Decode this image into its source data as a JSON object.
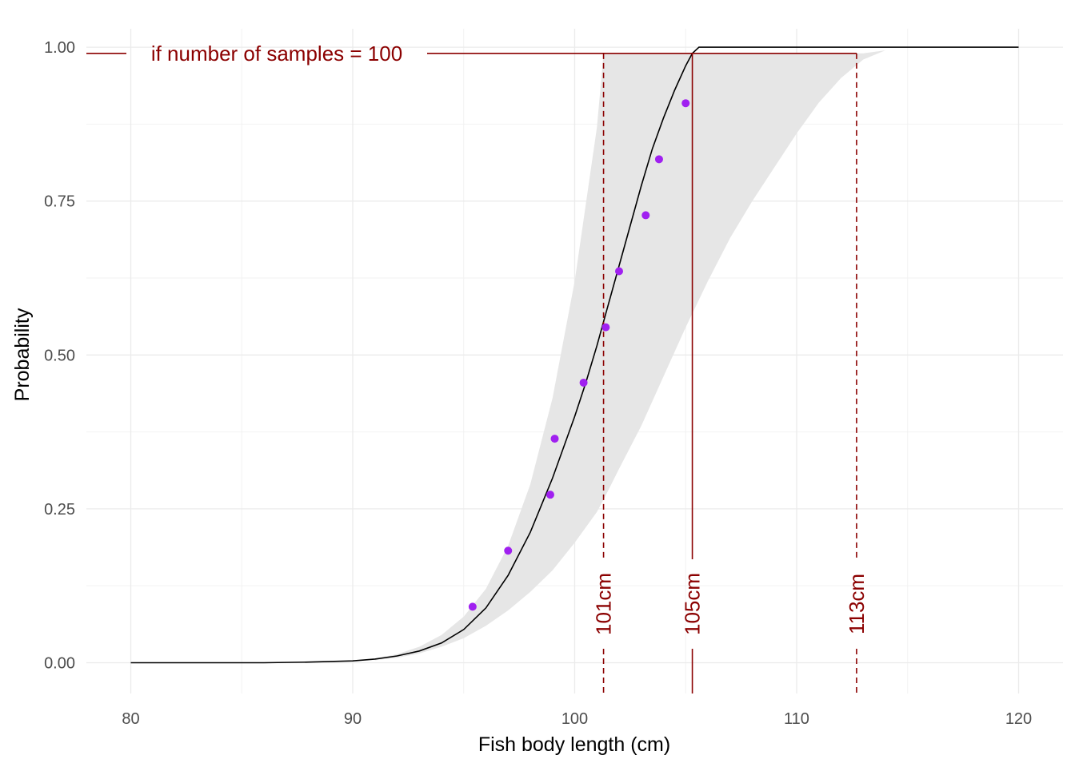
{
  "chart_data": {
    "type": "line",
    "xlabel": "Fish body length (cm)",
    "ylabel": "Probability",
    "xlim": [
      78,
      122
    ],
    "ylim": [
      -0.05,
      1.03
    ],
    "x_ticks": [
      80,
      90,
      100,
      110,
      120
    ],
    "x_tick_labels": [
      "80",
      "90",
      "100",
      "110",
      "120"
    ],
    "y_ticks": [
      0,
      0.25,
      0.5,
      0.75,
      1
    ],
    "y_tick_labels": [
      "0.00",
      "0.25",
      "0.50",
      "0.75",
      "1.00"
    ],
    "x_minor_ticks": [
      85,
      95,
      105,
      115
    ],
    "y_minor_ticks": [
      0.125,
      0.375,
      0.625,
      0.875
    ],
    "grid": true,
    "legend": "none",
    "fitted_curve": {
      "color": "#000000",
      "x": [
        80,
        86,
        88,
        90,
        91,
        92,
        93,
        94,
        95,
        96,
        97,
        98,
        99,
        100,
        100.5,
        101,
        101.5,
        102,
        102.5,
        103,
        103.5,
        104,
        104.5,
        105,
        105.3,
        105.6,
        106,
        110,
        120
      ],
      "y": [
        0,
        0,
        0.001,
        0.003,
        0.006,
        0.011,
        0.019,
        0.032,
        0.054,
        0.089,
        0.142,
        0.212,
        0.3,
        0.4,
        0.455,
        0.515,
        0.58,
        0.645,
        0.71,
        0.775,
        0.835,
        0.885,
        0.93,
        0.97,
        0.99,
        1.0,
        1.0,
        1.0,
        1.0
      ]
    },
    "confidence_band": {
      "color": "#e6e6e6",
      "x": [
        91,
        92,
        93,
        94,
        95,
        96,
        97,
        98,
        99,
        100,
        101,
        101.3,
        102,
        103,
        104,
        105,
        106,
        107,
        108,
        109,
        110,
        111,
        112,
        113,
        114
      ],
      "lower": [
        0.004,
        0.008,
        0.015,
        0.026,
        0.04,
        0.06,
        0.085,
        0.115,
        0.15,
        0.195,
        0.245,
        0.265,
        0.315,
        0.385,
        0.465,
        0.545,
        0.62,
        0.69,
        0.75,
        0.805,
        0.86,
        0.91,
        0.95,
        0.98,
        0.995
      ],
      "upper": [
        0.007,
        0.014,
        0.026,
        0.045,
        0.075,
        0.12,
        0.19,
        0.29,
        0.43,
        0.62,
        0.87,
        0.99,
        0.99,
        0.99,
        0.99,
        0.99,
        0.99,
        0.99,
        0.99,
        0.99,
        0.99,
        0.99,
        0.99,
        0.99,
        0.995
      ]
    },
    "points": {
      "color": "#a020f0",
      "x": [
        95.4,
        97.0,
        98.9,
        99.1,
        100.4,
        101.4,
        102.0,
        103.2,
        103.8,
        105.0
      ],
      "y": [
        0.091,
        0.182,
        0.273,
        0.364,
        0.455,
        0.545,
        0.636,
        0.727,
        0.818,
        0.909
      ]
    },
    "annotations": {
      "color": "#8b0000",
      "threshold_label": "if number of samples = 100",
      "threshold_y": 0.99,
      "lines": [
        {
          "x": 101.3,
          "label": "101cm",
          "style": "dashed"
        },
        {
          "x": 105.3,
          "label": "105cm",
          "style": "solid"
        },
        {
          "x": 112.7,
          "label": "113cm",
          "style": "dashed"
        }
      ]
    }
  }
}
